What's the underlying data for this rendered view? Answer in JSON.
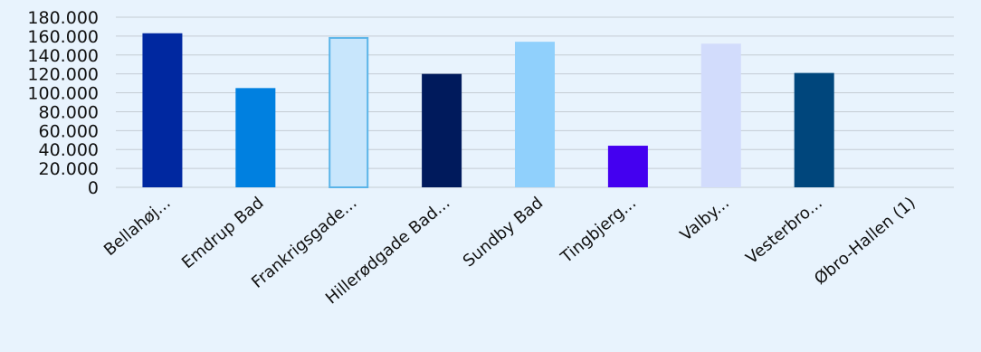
{
  "chart_data": {
    "type": "bar",
    "categories": [
      "Bellahøj...",
      "Emdrup Bad",
      "Frankrigsgade...",
      "Hillerødgade Bad...",
      "Sundby Bad",
      "Tingbjerg...",
      "Valby...",
      "Vesterbro...",
      "Øbro-Hallen (1)"
    ],
    "values": [
      163000,
      105000,
      159000,
      120000,
      154000,
      44000,
      152000,
      121000,
      0
    ],
    "colors": [
      "#0028a0",
      "#0080e0",
      "#c8e6fc",
      "#001a5c",
      "#90d0fc",
      "#4400f0",
      "#d2dcfc",
      "#00467c",
      "#e8f3fd"
    ],
    "bar_outline": [
      null,
      null,
      "#5ab4e8",
      null,
      null,
      null,
      null,
      null,
      null
    ],
    "ylim": [
      0,
      180000
    ],
    "y_ticks": [
      "0",
      "20.000",
      "40.000",
      "60.000",
      "80.000",
      "100.000",
      "120.000",
      "140.000",
      "160.000",
      "180.000"
    ],
    "grid": true,
    "legend": "none",
    "background": "#e8f3fd",
    "gridline_color": "#c4ccd4"
  }
}
